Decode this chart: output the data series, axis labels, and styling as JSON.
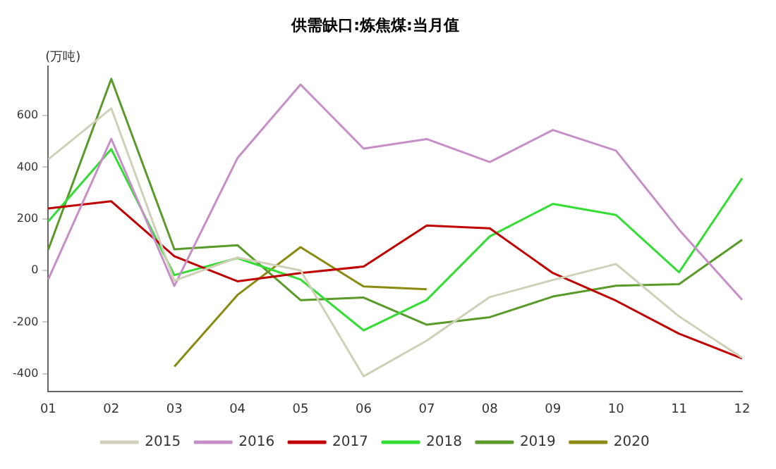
{
  "chart_data": {
    "type": "line",
    "title": "供需缺口:炼焦煤:当月值",
    "ylabel": "(万吨)",
    "categories": [
      "01",
      "02",
      "03",
      "04",
      "05",
      "06",
      "07",
      "08",
      "09",
      "10",
      "11",
      "12"
    ],
    "series": [
      {
        "name": "2015",
        "color": "#d0d0b8",
        "values": [
          430,
          628,
          -40,
          50,
          0,
          -410,
          -272,
          -103,
          -37,
          25,
          -178,
          -338
        ]
      },
      {
        "name": "2016",
        "color": "#c78fc8",
        "values": [
          -35,
          510,
          -60,
          435,
          720,
          472,
          509,
          420,
          544,
          464,
          158,
          -114
        ]
      },
      {
        "name": "2017",
        "color": "#c00000",
        "values": [
          240,
          268,
          55,
          -42,
          -10,
          15,
          174,
          163,
          -10,
          -117,
          -245,
          -341
        ]
      },
      {
        "name": "2018",
        "color": "#33dd33",
        "values": [
          190,
          470,
          -18,
          48,
          -35,
          -232,
          -114,
          132,
          258,
          215,
          -7,
          357
        ]
      },
      {
        "name": "2019",
        "color": "#5a9a2a",
        "values": [
          80,
          742,
          82,
          98,
          -115,
          -105,
          -210,
          -181,
          -101,
          -59,
          -53,
          119
        ]
      },
      {
        "name": "2020",
        "color": "#8a8a10",
        "values": [
          null,
          null,
          -372,
          -95,
          90,
          -62,
          -73,
          null,
          null,
          null,
          null,
          null
        ]
      }
    ],
    "ylim": [
      -470,
      790
    ],
    "yticks": [
      -400,
      -200,
      0,
      200,
      400,
      600
    ],
    "grid": false,
    "legend": "bottom",
    "marker": "none",
    "line_style": "solid"
  }
}
